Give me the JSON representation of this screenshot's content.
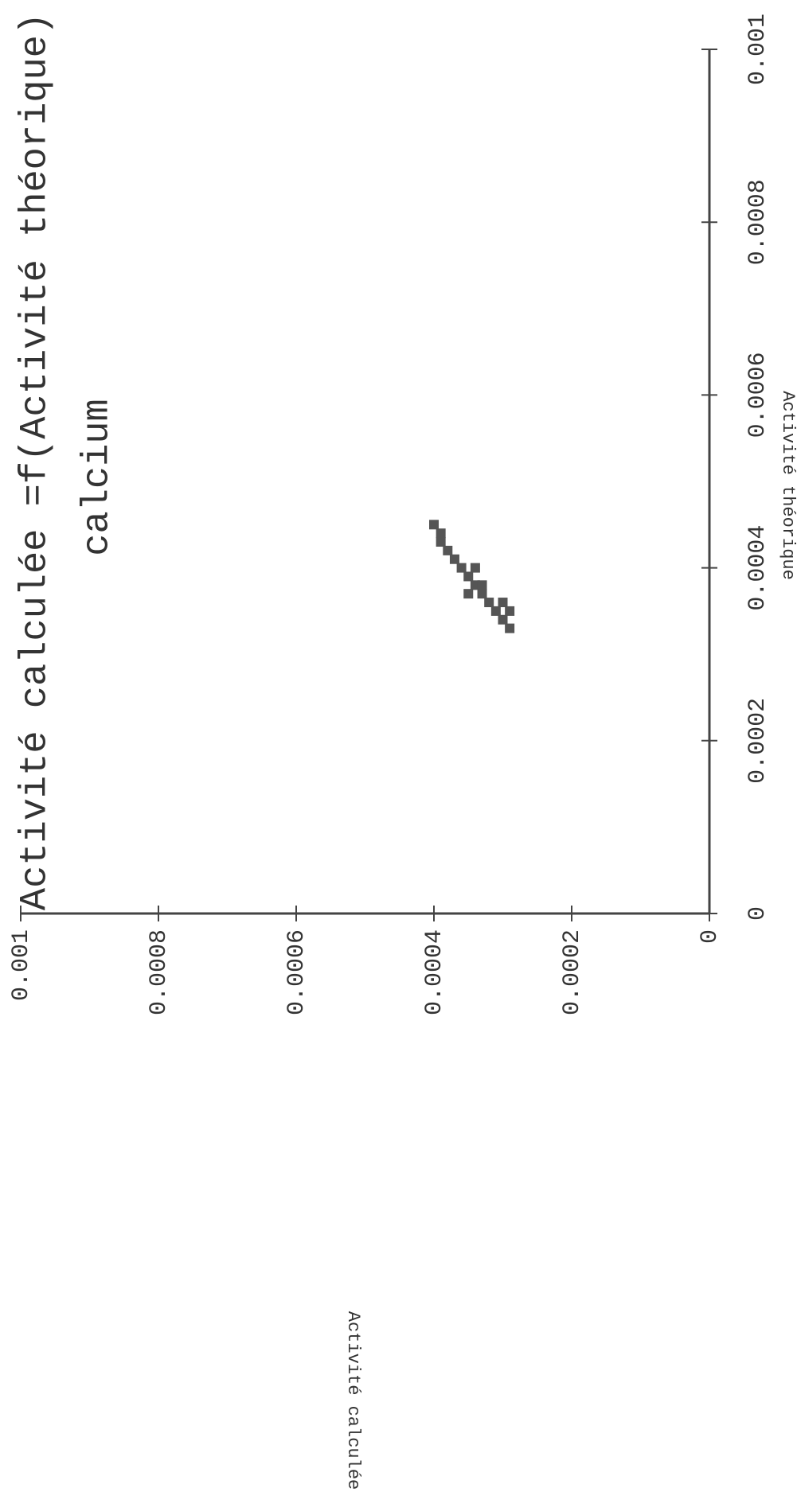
{
  "chart_data": {
    "type": "scatter",
    "title": "Activité calculée =f(Activité théorique)",
    "subtitle": "calcium",
    "x_label": "Activité théorique",
    "y_label": "Activité calculée",
    "xlim": [
      0,
      0.001
    ],
    "xticks": [
      0,
      0.0002,
      0.0004,
      0.0006,
      0.0008,
      0.001
    ],
    "ylim": [
      0,
      0.001
    ],
    "yticks": [
      0,
      0.0002,
      0.0004,
      0.0006,
      0.0008,
      0.001
    ],
    "x": [
      0.00045,
      0.00044,
      0.00043,
      0.00042,
      0.00041,
      0.0004,
      0.00039,
      0.00038,
      0.00037,
      0.00036,
      0.00035,
      0.00034,
      0.00033,
      0.00038,
      0.00036,
      0.0004,
      0.00037,
      0.00035
    ],
    "series": [
      {
        "color": "#555555",
        "values": [
          0.0004,
          0.00039,
          0.00039,
          0.00038,
          0.00037,
          0.00036,
          0.00035,
          0.00034,
          0.00033,
          0.00032,
          0.00031,
          0.0003,
          0.00029,
          0.00033,
          0.0003,
          0.00034,
          0.00035,
          0.00029
        ]
      }
    ]
  }
}
